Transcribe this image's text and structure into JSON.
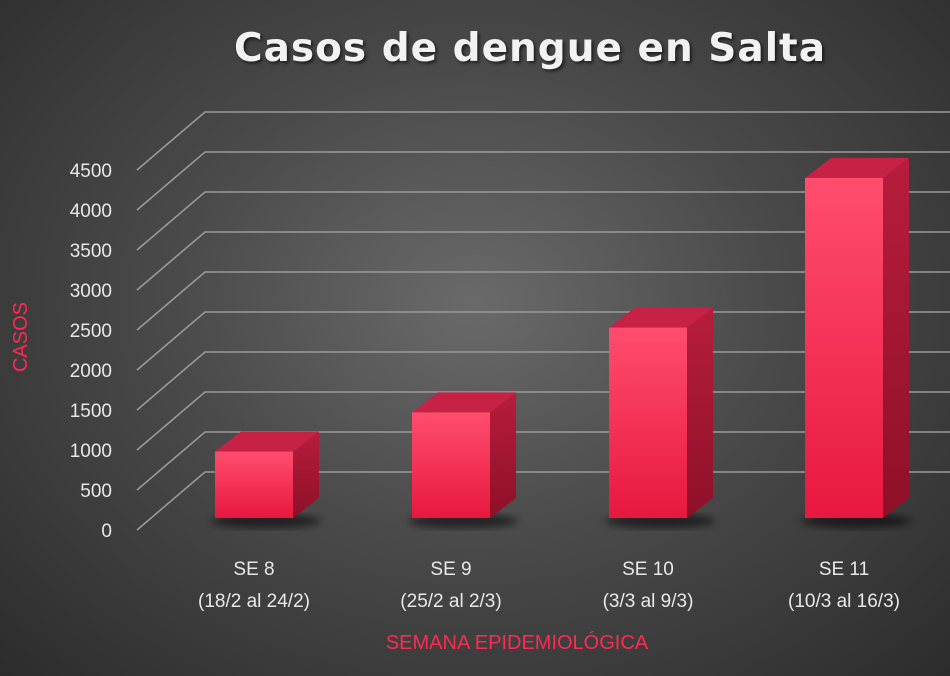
{
  "chart_data": {
    "type": "bar",
    "title": "Casos de dengue en Salta",
    "xlabel": "SEMANA EPIDEMIOLÓGICA",
    "ylabel": "CASOS",
    "ylim": [
      0,
      4500
    ],
    "ytick_step": 500,
    "yticks": [
      "0",
      "500",
      "1000",
      "1500",
      "2000",
      "2500",
      "3000",
      "3500",
      "4000",
      "4500"
    ],
    "categories": [
      {
        "line1": "SE 8",
        "line2": "(18/2 al 24/2)"
      },
      {
        "line1": "SE 9",
        "line2": "(25/2 al 2/3)"
      },
      {
        "line1": "SE 10",
        "line2": "(3/3 al 9/3)"
      },
      {
        "line1": "SE 11",
        "line2": "(10/3 al 16/3)"
      }
    ],
    "values": [
      830,
      1320,
      2380,
      4250
    ],
    "bar_color": "#ff1f4b",
    "grid": true,
    "legend": false
  }
}
